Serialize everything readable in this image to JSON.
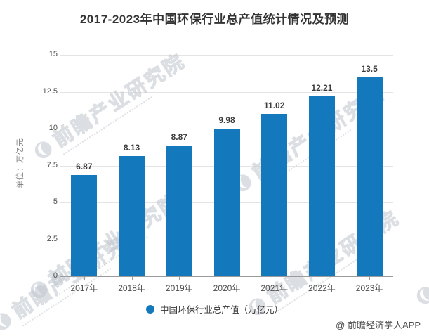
{
  "header": {
    "title": "2017-2023年中国环保行业总产值统计情况及预测"
  },
  "chart_data": {
    "type": "bar",
    "title": "2017-2023年中国环保行业总产值统计情况及预测",
    "categories": [
      "2017年",
      "2018年",
      "2019年",
      "2020年",
      "2021年",
      "2022年",
      "2023年"
    ],
    "values": [
      6.87,
      8.13,
      8.87,
      9.98,
      11.02,
      12.21,
      13.5
    ],
    "value_labels": [
      "6.87",
      "8.13",
      "8.87",
      "9.98",
      "11.02",
      "12.21",
      "13.5"
    ],
    "xlabel": "",
    "ylabel": "单位：万亿元",
    "ylim": [
      0,
      15
    ],
    "yticks": [
      0,
      2.5,
      5,
      7.5,
      10,
      12.5,
      15
    ],
    "ytick_labels": [
      "0",
      "2.5",
      "5",
      "7.5",
      "10",
      "12.5",
      "15"
    ],
    "grid": true,
    "legend_position": "bottom",
    "bar_color": "#1478bd"
  },
  "legend": {
    "label": "中国环保行业总产值（万亿元）",
    "marker_color": "#1478bd"
  },
  "watermark": {
    "text": "前瞻产业研究院",
    "logo": "qianzhan-logo"
  },
  "footer": {
    "attribution": "@ 前瞻经济学人APP"
  },
  "colors": {
    "bar": "#1478bd",
    "gridline": "#e4e4e4",
    "axis": "#9b9b9b",
    "title_text": "#333333",
    "tick_text": "#4d4d4d",
    "value_label_text": "#3b3b3b",
    "y_axis_title_text": "#7a7a7a",
    "legend_text": "#333333",
    "attribution_text": "#4d4d4d",
    "watermark": "#bfc6cd",
    "background": "#ffffff"
  }
}
